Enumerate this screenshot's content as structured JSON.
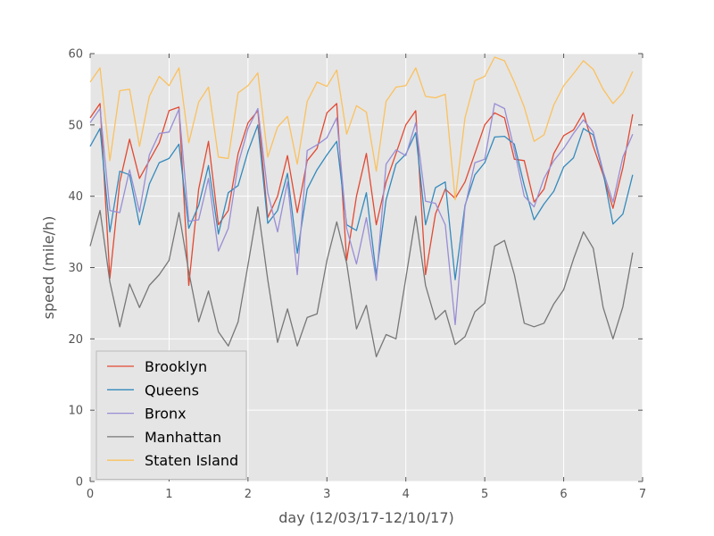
{
  "chart_data": {
    "type": "line",
    "xlabel": "day (12/03/17-12/10/17)",
    "ylabel": "speed (mile/h)",
    "xlim": [
      0,
      7
    ],
    "ylim": [
      0,
      60
    ],
    "xticks": [
      "0",
      "1",
      "2",
      "3",
      "4",
      "5",
      "6",
      "7"
    ],
    "yticks": [
      "0",
      "10",
      "20",
      "30",
      "40",
      "50",
      "60"
    ],
    "grid": true,
    "legend_position": "lower-left",
    "x": [
      0,
      0.125,
      0.25,
      0.375,
      0.5,
      0.625,
      0.75,
      0.875,
      1,
      1.125,
      1.25,
      1.375,
      1.5,
      1.625,
      1.75,
      1.875,
      2,
      2.125,
      2.25,
      2.375,
      2.5,
      2.625,
      2.75,
      2.875,
      3,
      3.125,
      3.25,
      3.375,
      3.5,
      3.625,
      3.75,
      3.875,
      4,
      4.125,
      4.25,
      4.375,
      4.5,
      4.625,
      4.75,
      4.875,
      5,
      5.125,
      5.25,
      5.375,
      5.5,
      5.625,
      5.75,
      5.875,
      6,
      6.125,
      6.25,
      6.375,
      6.5,
      6.625,
      6.75,
      6.875
    ],
    "series": [
      {
        "name": "Brooklyn",
        "color": "#e24a33",
        "values": [
          51.0,
          53.0,
          28.5,
          42.0,
          48.0,
          42.5,
          45.0,
          47.5,
          52.0,
          52.5,
          27.5,
          41.0,
          47.7,
          36.0,
          38.0,
          46.0,
          50.3,
          52.0,
          37.0,
          40.0,
          45.7,
          37.7,
          45.0,
          46.7,
          51.7,
          53.0,
          31.0,
          40.0,
          46.0,
          36.0,
          42.0,
          46.0,
          50.0,
          52.0,
          29.0,
          37.5,
          41.0,
          39.7,
          42.0,
          46.0,
          50.0,
          51.7,
          51.0,
          45.2,
          45.0,
          39.2,
          41.0,
          46.0,
          48.5,
          49.3,
          51.7,
          47.0,
          43.0,
          38.3,
          44.0,
          51.5
        ]
      },
      {
        "name": "Queens",
        "color": "#348abd",
        "values": [
          47.0,
          49.5,
          35.0,
          43.5,
          43.0,
          36.0,
          41.7,
          44.7,
          45.3,
          47.3,
          35.5,
          38.7,
          44.3,
          34.7,
          40.5,
          41.5,
          46.3,
          50.0,
          36.2,
          38.0,
          43.2,
          32.0,
          41.0,
          43.7,
          45.8,
          47.7,
          36.0,
          35.2,
          40.5,
          29.0,
          39.5,
          44.5,
          45.9,
          48.9,
          36.0,
          41.2,
          42.0,
          28.3,
          38.7,
          43.0,
          44.7,
          48.3,
          48.4,
          47.3,
          41.5,
          36.7,
          38.9,
          40.7,
          44.1,
          45.4,
          49.5,
          48.6,
          43.3,
          36.1,
          37.5,
          43.0
        ]
      },
      {
        "name": "Bronx",
        "color": "#988ed5",
        "values": [
          50.3,
          52.3,
          38.0,
          37.7,
          43.7,
          37.8,
          45.8,
          48.8,
          49.0,
          52.2,
          36.5,
          36.7,
          42.5,
          32.3,
          35.5,
          44.5,
          49.5,
          52.3,
          40.5,
          35.0,
          42.0,
          29.0,
          46.4,
          47.2,
          48.2,
          51.0,
          35.5,
          30.5,
          37.0,
          28.2,
          44.5,
          46.5,
          45.7,
          50.3,
          39.3,
          39.0,
          36.0,
          22.0,
          38.5,
          44.7,
          45.2,
          53.0,
          52.3,
          46.5,
          40.0,
          38.5,
          42.5,
          45.0,
          46.7,
          48.8,
          50.7,
          49.0,
          43.5,
          39.2,
          45.5,
          48.7
        ]
      },
      {
        "name": "Manhattan",
        "color": "#777777",
        "values": [
          33.0,
          38.0,
          28.0,
          21.7,
          27.7,
          24.4,
          27.5,
          29.0,
          31.0,
          37.7,
          29.4,
          22.4,
          26.7,
          21.0,
          19.0,
          22.4,
          30.4,
          38.5,
          28.3,
          19.5,
          24.2,
          19.0,
          23.0,
          23.5,
          31.0,
          36.4,
          30.6,
          21.4,
          24.7,
          17.5,
          20.6,
          20.0,
          28.5,
          37.2,
          27.5,
          22.7,
          24.0,
          19.2,
          20.3,
          23.8,
          25.0,
          33.0,
          33.8,
          29.0,
          22.2,
          21.7,
          22.2,
          24.9,
          26.9,
          31.2,
          35.0,
          32.7,
          24.4,
          20.0,
          24.5,
          32.1
        ]
      },
      {
        "name": "Staten Island",
        "color": "#fbc15e",
        "values": [
          56.0,
          58.0,
          45.0,
          54.8,
          55.0,
          47.0,
          54.0,
          56.8,
          55.5,
          58.0,
          47.5,
          53.2,
          55.3,
          45.5,
          45.3,
          54.5,
          55.5,
          57.3,
          45.5,
          49.7,
          51.2,
          44.5,
          53.3,
          56.0,
          55.4,
          57.7,
          48.7,
          52.7,
          51.8,
          43.5,
          53.3,
          55.3,
          55.5,
          58.0,
          54.0,
          53.8,
          54.3,
          39.5,
          51.0,
          56.2,
          56.8,
          59.5,
          59.0,
          56.0,
          52.5,
          47.7,
          48.6,
          52.8,
          55.5,
          57.2,
          59.0,
          57.8,
          55.0,
          53.0,
          54.5,
          57.5
        ]
      }
    ]
  }
}
